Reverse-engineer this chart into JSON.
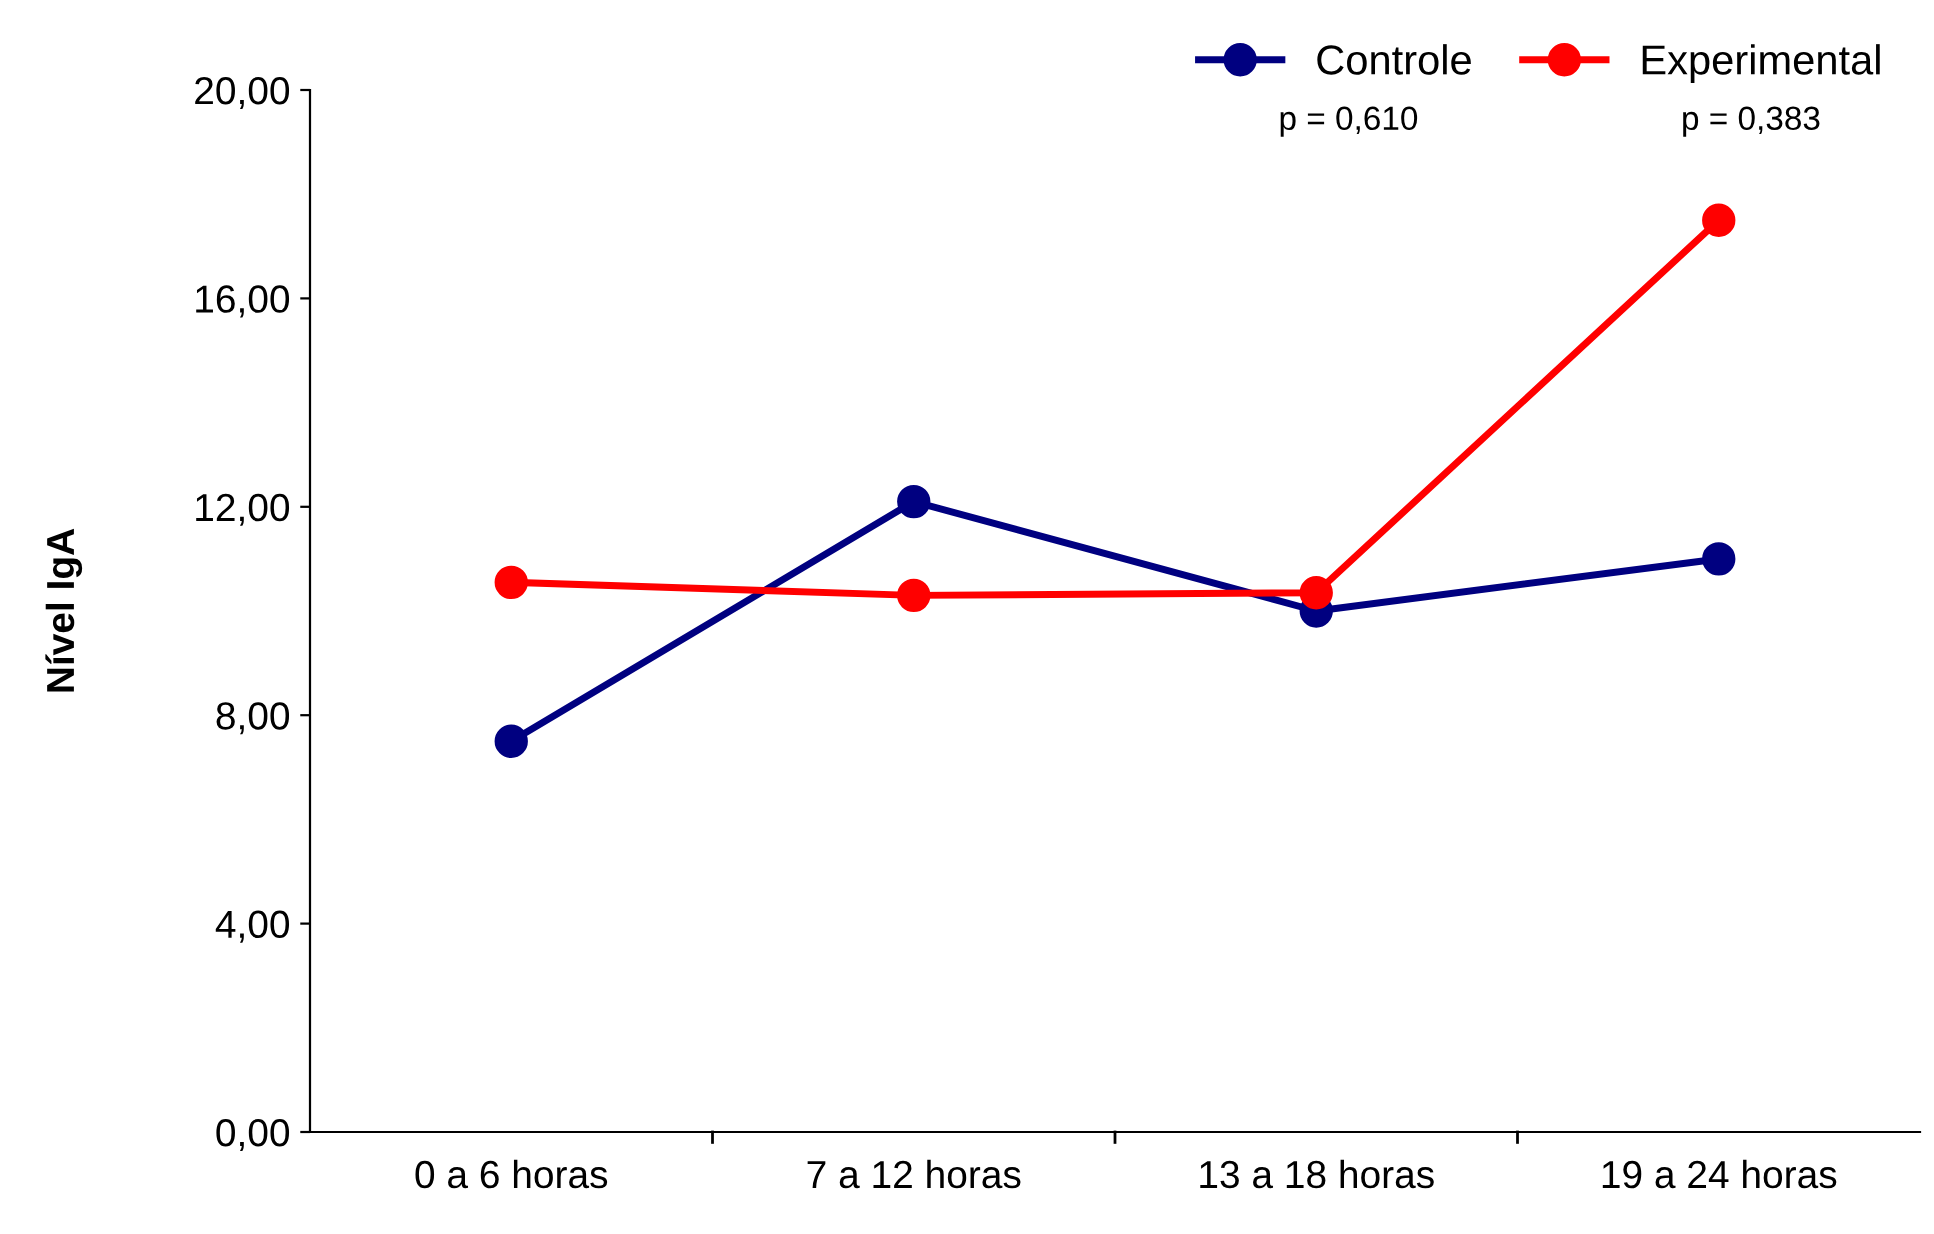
{
  "chart_data": {
    "type": "line",
    "ylabel": "Nível IgA",
    "categories": [
      "0 a 6 horas",
      "7 a 12 horas",
      "13 a 18 horas",
      "19 a 24 horas"
    ],
    "series": [
      {
        "name": "Controle",
        "color": "#000080",
        "values": [
          7.5,
          12.1,
          10.0,
          11.0
        ]
      },
      {
        "name": "Experimental",
        "color": "#ff0000",
        "values": [
          10.55,
          10.3,
          10.35,
          17.5
        ]
      }
    ],
    "ylim": [
      0,
      20
    ],
    "yticks": [
      {
        "value": 0,
        "label": "0,00"
      },
      {
        "value": 4,
        "label": "4,00"
      },
      {
        "value": 8,
        "label": "8,00"
      },
      {
        "value": 12,
        "label": "12,00"
      },
      {
        "value": 16,
        "label": "16,00"
      },
      {
        "value": 20,
        "label": "20,00"
      }
    ],
    "annotations": [
      "p = 0,610",
      "p = 0,383"
    ],
    "legend": "top right",
    "grid": false,
    "marker": "circle",
    "line_style": "solid"
  }
}
